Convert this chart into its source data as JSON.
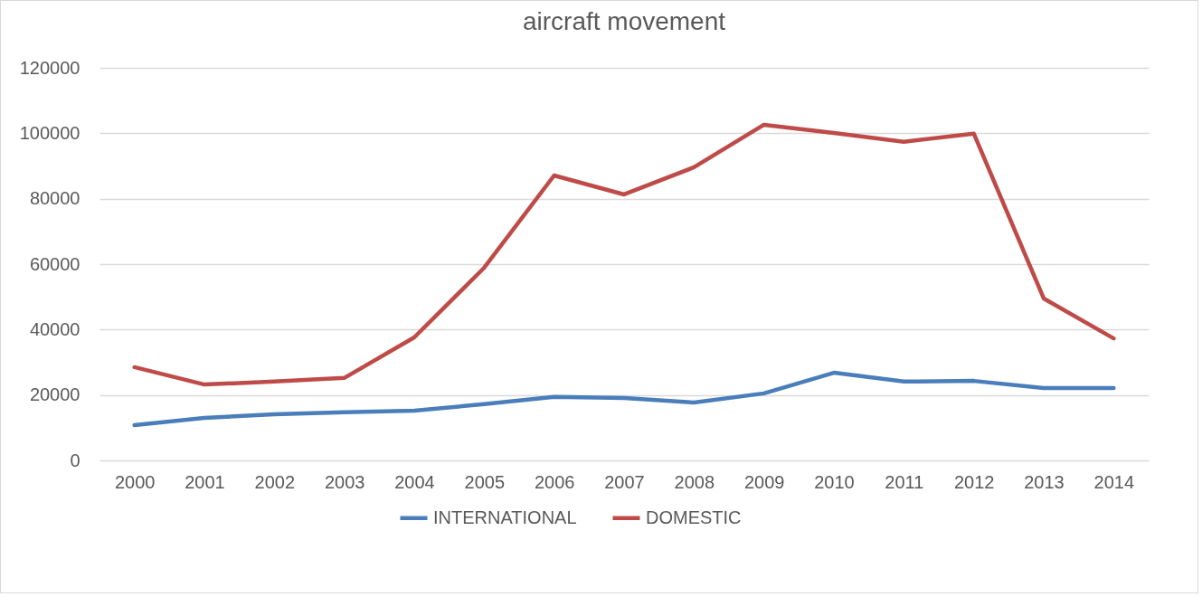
{
  "chart_data": {
    "type": "line",
    "title": "aircraft movement",
    "categories": [
      "2000",
      "2001",
      "2002",
      "2003",
      "2004",
      "2005",
      "2006",
      "2007",
      "2008",
      "2009",
      "2010",
      "2011",
      "2012",
      "2013",
      "2014"
    ],
    "series": [
      {
        "name": "INTERNATIONAL",
        "color": "#4a7ebb",
        "values": [
          10800,
          13000,
          14100,
          14700,
          15200,
          17200,
          19400,
          19100,
          17700,
          20500,
          26800,
          24100,
          24300,
          22100,
          22100
        ]
      },
      {
        "name": "DOMESTIC",
        "color": "#be4b48",
        "values": [
          28500,
          23200,
          24100,
          25200,
          37600,
          58900,
          87100,
          81300,
          89600,
          102600,
          100100,
          97400,
          99900,
          49500,
          37300
        ]
      }
    ],
    "ylim": [
      0,
      120000
    ],
    "yticks": [
      0,
      20000,
      40000,
      60000,
      80000,
      100000,
      120000
    ],
    "grid": "y",
    "legend": "bottom",
    "line_style": "solid",
    "marker": "none"
  }
}
